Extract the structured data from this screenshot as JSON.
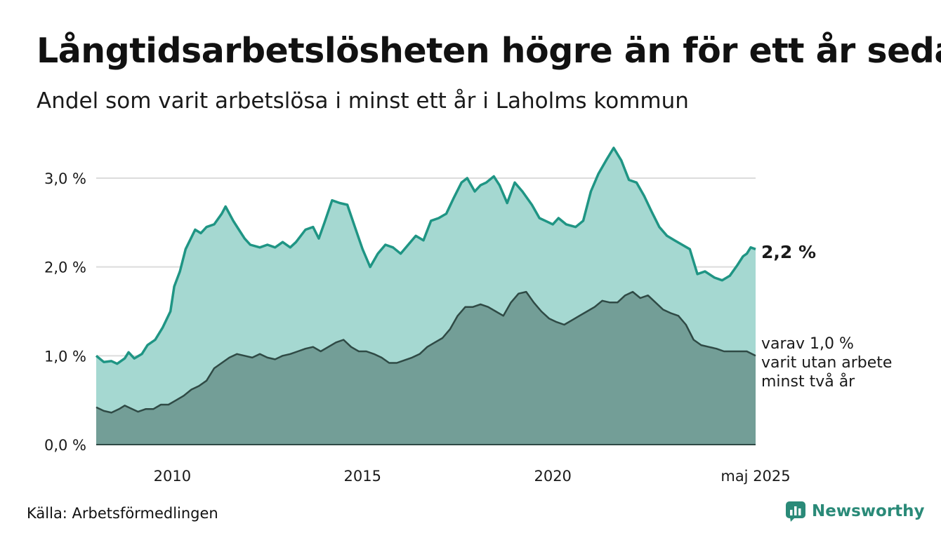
{
  "title": "Långtidsarbetslösheten högre än för ett år sedan",
  "subtitle": "Andel som varit arbetslösa i minst ett år i Laholms kommun",
  "source": "Källa: Arbetsförmedlingen",
  "brand": {
    "name": "Newsworthy",
    "icon": "newsworthy-logo-icon",
    "color": "#2a8a78"
  },
  "chart_data": {
    "type": "area",
    "title": "Långtidsarbetslösheten högre än för ett år sedan",
    "subtitle": "Andel som varit arbetslösa i minst ett år i Laholms kommun",
    "xlim": [
      2008.0,
      2025.33
    ],
    "ylim": [
      0,
      3.0
    ],
    "y_ticks": [
      0,
      1,
      2,
      3
    ],
    "y_tick_labels": [
      "0,0 %",
      "1,0 %",
      "2,0 %",
      "3,0 %"
    ],
    "x_ticks": [
      2010,
      2015,
      2020,
      2025.33
    ],
    "x_tick_labels": [
      "2010",
      "2015",
      "2020",
      "maj 2025"
    ],
    "grid": true,
    "colors": {
      "total_line": "#1f9584",
      "total_fill": "#a5d8d1",
      "long_line": "#2f4a45",
      "long_fill": "#739e97"
    },
    "series": [
      {
        "name": "minst ett år",
        "end_label": "2,2 %",
        "points": [
          [
            2008.0,
            1.0
          ],
          [
            2008.2,
            0.93
          ],
          [
            2008.4,
            0.94
          ],
          [
            2008.55,
            0.91
          ],
          [
            2008.75,
            0.97
          ],
          [
            2008.85,
            1.04
          ],
          [
            2009.0,
            0.97
          ],
          [
            2009.2,
            1.02
          ],
          [
            2009.35,
            1.12
          ],
          [
            2009.55,
            1.18
          ],
          [
            2009.75,
            1.32
          ],
          [
            2009.95,
            1.5
          ],
          [
            2010.05,
            1.78
          ],
          [
            2010.2,
            1.95
          ],
          [
            2010.35,
            2.2
          ],
          [
            2010.6,
            2.42
          ],
          [
            2010.75,
            2.38
          ],
          [
            2010.9,
            2.45
          ],
          [
            2011.1,
            2.48
          ],
          [
            2011.3,
            2.6
          ],
          [
            2011.4,
            2.68
          ],
          [
            2011.6,
            2.52
          ],
          [
            2011.75,
            2.42
          ],
          [
            2011.9,
            2.32
          ],
          [
            2012.05,
            2.25
          ],
          [
            2012.3,
            2.22
          ],
          [
            2012.5,
            2.25
          ],
          [
            2012.7,
            2.22
          ],
          [
            2012.9,
            2.28
          ],
          [
            2013.1,
            2.22
          ],
          [
            2013.25,
            2.28
          ],
          [
            2013.5,
            2.42
          ],
          [
            2013.7,
            2.45
          ],
          [
            2013.85,
            2.32
          ],
          [
            2014.0,
            2.5
          ],
          [
            2014.2,
            2.75
          ],
          [
            2014.4,
            2.72
          ],
          [
            2014.6,
            2.7
          ],
          [
            2014.8,
            2.45
          ],
          [
            2015.0,
            2.2
          ],
          [
            2015.1,
            2.1
          ],
          [
            2015.2,
            2.0
          ],
          [
            2015.4,
            2.15
          ],
          [
            2015.6,
            2.25
          ],
          [
            2015.8,
            2.22
          ],
          [
            2016.0,
            2.15
          ],
          [
            2016.2,
            2.25
          ],
          [
            2016.4,
            2.35
          ],
          [
            2016.6,
            2.3
          ],
          [
            2016.8,
            2.52
          ],
          [
            2017.0,
            2.55
          ],
          [
            2017.2,
            2.6
          ],
          [
            2017.4,
            2.78
          ],
          [
            2017.6,
            2.95
          ],
          [
            2017.75,
            3.0
          ],
          [
            2017.95,
            2.85
          ],
          [
            2018.1,
            2.92
          ],
          [
            2018.25,
            2.95
          ],
          [
            2018.45,
            3.02
          ],
          [
            2018.6,
            2.92
          ],
          [
            2018.8,
            2.72
          ],
          [
            2019.0,
            2.95
          ],
          [
            2019.2,
            2.85
          ],
          [
            2019.45,
            2.7
          ],
          [
            2019.65,
            2.55
          ],
          [
            2019.8,
            2.52
          ],
          [
            2020.0,
            2.48
          ],
          [
            2020.15,
            2.55
          ],
          [
            2020.35,
            2.48
          ],
          [
            2020.6,
            2.45
          ],
          [
            2020.8,
            2.52
          ],
          [
            2021.0,
            2.85
          ],
          [
            2021.2,
            3.05
          ],
          [
            2021.4,
            3.2
          ],
          [
            2021.6,
            3.34
          ],
          [
            2021.8,
            3.2
          ],
          [
            2022.0,
            2.98
          ],
          [
            2022.2,
            2.95
          ],
          [
            2022.4,
            2.8
          ],
          [
            2022.6,
            2.62
          ],
          [
            2022.8,
            2.45
          ],
          [
            2023.0,
            2.35
          ],
          [
            2023.2,
            2.3
          ],
          [
            2023.4,
            2.25
          ],
          [
            2023.6,
            2.2
          ],
          [
            2023.8,
            1.92
          ],
          [
            2024.0,
            1.95
          ],
          [
            2024.25,
            1.88
          ],
          [
            2024.45,
            1.85
          ],
          [
            2024.65,
            1.9
          ],
          [
            2024.85,
            2.02
          ],
          [
            2025.0,
            2.12
          ],
          [
            2025.1,
            2.15
          ],
          [
            2025.2,
            2.22
          ],
          [
            2025.33,
            2.2
          ]
        ]
      },
      {
        "name": "minst två år",
        "end_label": "varav 1,0 % varit utan arbete minst två år",
        "end_label_lines": [
          "varav 1,0 %",
          "varit utan arbete",
          "minst två år"
        ],
        "points": [
          [
            2008.0,
            0.42
          ],
          [
            2008.2,
            0.38
          ],
          [
            2008.4,
            0.36
          ],
          [
            2008.6,
            0.4
          ],
          [
            2008.75,
            0.44
          ],
          [
            2008.9,
            0.41
          ],
          [
            2009.1,
            0.37
          ],
          [
            2009.3,
            0.4
          ],
          [
            2009.5,
            0.4
          ],
          [
            2009.7,
            0.45
          ],
          [
            2009.9,
            0.45
          ],
          [
            2010.1,
            0.5
          ],
          [
            2010.3,
            0.55
          ],
          [
            2010.5,
            0.62
          ],
          [
            2010.7,
            0.66
          ],
          [
            2010.9,
            0.72
          ],
          [
            2011.1,
            0.86
          ],
          [
            2011.3,
            0.92
          ],
          [
            2011.5,
            0.98
          ],
          [
            2011.7,
            1.02
          ],
          [
            2011.9,
            1.0
          ],
          [
            2012.1,
            0.98
          ],
          [
            2012.3,
            1.02
          ],
          [
            2012.5,
            0.98
          ],
          [
            2012.7,
            0.96
          ],
          [
            2012.9,
            1.0
          ],
          [
            2013.1,
            1.02
          ],
          [
            2013.3,
            1.05
          ],
          [
            2013.5,
            1.08
          ],
          [
            2013.7,
            1.1
          ],
          [
            2013.9,
            1.05
          ],
          [
            2014.1,
            1.1
          ],
          [
            2014.3,
            1.15
          ],
          [
            2014.5,
            1.18
          ],
          [
            2014.7,
            1.1
          ],
          [
            2014.9,
            1.05
          ],
          [
            2015.1,
            1.05
          ],
          [
            2015.3,
            1.02
          ],
          [
            2015.5,
            0.98
          ],
          [
            2015.7,
            0.92
          ],
          [
            2015.9,
            0.92
          ],
          [
            2016.1,
            0.95
          ],
          [
            2016.3,
            0.98
          ],
          [
            2016.5,
            1.02
          ],
          [
            2016.7,
            1.1
          ],
          [
            2016.9,
            1.15
          ],
          [
            2017.1,
            1.2
          ],
          [
            2017.3,
            1.3
          ],
          [
            2017.5,
            1.45
          ],
          [
            2017.7,
            1.55
          ],
          [
            2017.9,
            1.55
          ],
          [
            2018.1,
            1.58
          ],
          [
            2018.3,
            1.55
          ],
          [
            2018.5,
            1.5
          ],
          [
            2018.7,
            1.45
          ],
          [
            2018.9,
            1.6
          ],
          [
            2019.1,
            1.7
          ],
          [
            2019.3,
            1.72
          ],
          [
            2019.5,
            1.6
          ],
          [
            2019.7,
            1.5
          ],
          [
            2019.9,
            1.42
          ],
          [
            2020.1,
            1.38
          ],
          [
            2020.3,
            1.35
          ],
          [
            2020.5,
            1.4
          ],
          [
            2020.7,
            1.45
          ],
          [
            2020.9,
            1.5
          ],
          [
            2021.1,
            1.55
          ],
          [
            2021.3,
            1.62
          ],
          [
            2021.5,
            1.6
          ],
          [
            2021.7,
            1.6
          ],
          [
            2021.9,
            1.68
          ],
          [
            2022.1,
            1.72
          ],
          [
            2022.3,
            1.65
          ],
          [
            2022.5,
            1.68
          ],
          [
            2022.7,
            1.6
          ],
          [
            2022.9,
            1.52
          ],
          [
            2023.1,
            1.48
          ],
          [
            2023.3,
            1.45
          ],
          [
            2023.5,
            1.35
          ],
          [
            2023.7,
            1.18
          ],
          [
            2023.9,
            1.12
          ],
          [
            2024.1,
            1.1
          ],
          [
            2024.3,
            1.08
          ],
          [
            2024.5,
            1.05
          ],
          [
            2024.7,
            1.05
          ],
          [
            2024.9,
            1.05
          ],
          [
            2025.1,
            1.05
          ],
          [
            2025.33,
            1.0
          ]
        ]
      }
    ]
  }
}
